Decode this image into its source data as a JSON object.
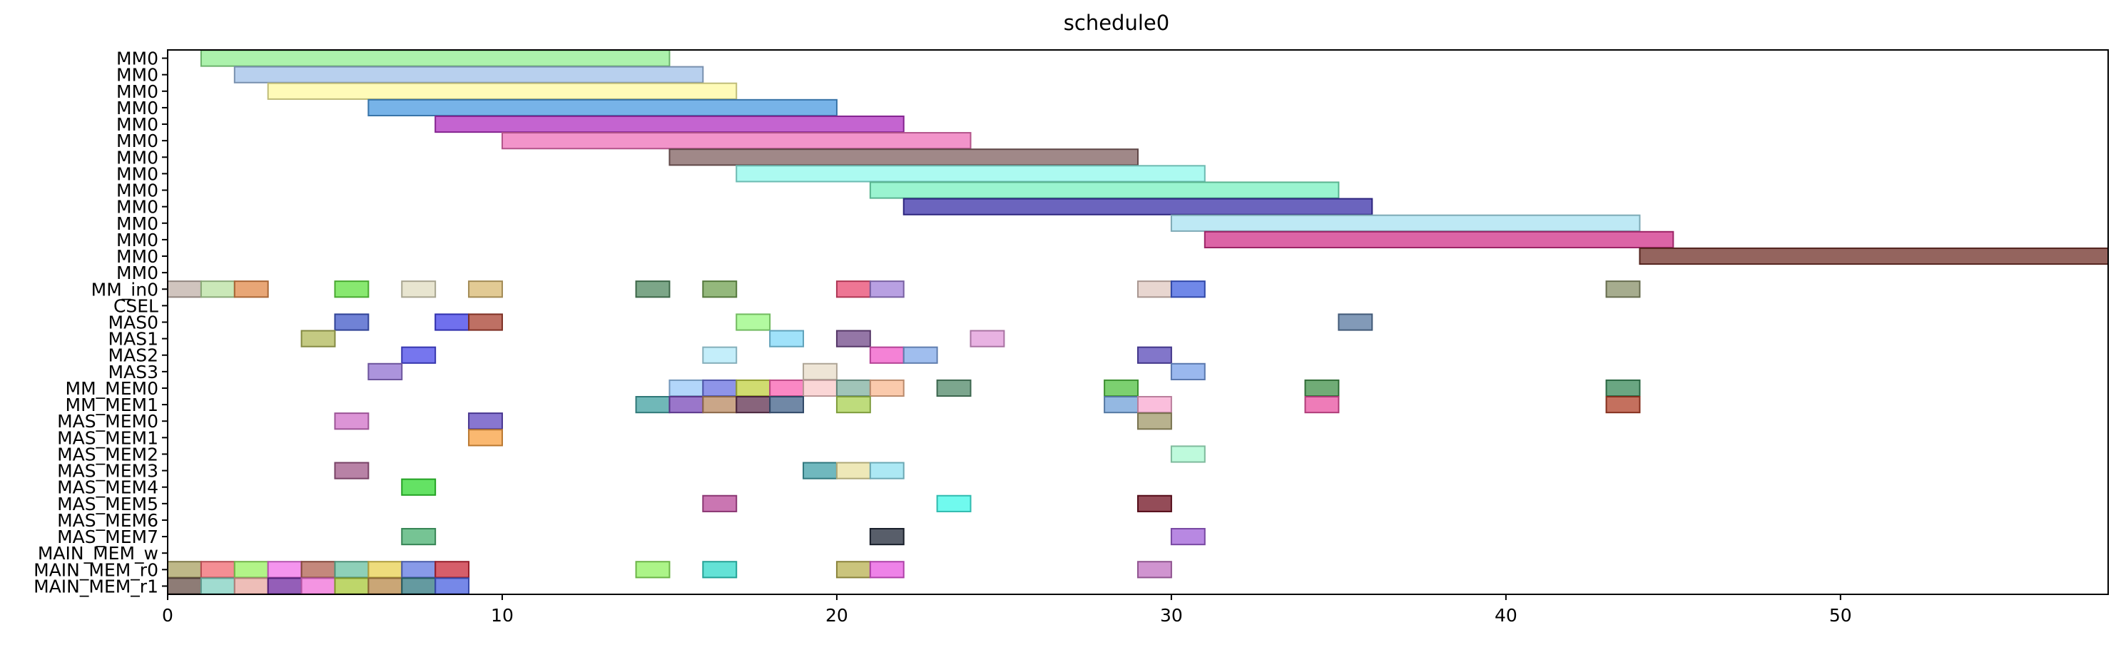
{
  "chart_data": {
    "type": "bar",
    "title": "schedule0",
    "xlabel": "",
    "ylabel": "",
    "xlim": [
      0,
      58
    ],
    "xticks": [
      0,
      10,
      20,
      30,
      40,
      50
    ],
    "grid": false,
    "legend": "none",
    "rows": [
      "MM0",
      "MM0",
      "MM0",
      "MM0",
      "MM0",
      "MM0",
      "MM0",
      "MM0",
      "MM0",
      "MM0",
      "MM0",
      "MM0",
      "MM0",
      "MM0",
      "MM_in0",
      "CSEL",
      "MAS0",
      "MAS1",
      "MAS2",
      "MAS3",
      "MM_MEM0",
      "MM_MEM1",
      "MAS_MEM0",
      "MAS_MEM1",
      "MAS_MEM2",
      "MAS_MEM3",
      "MAS_MEM4",
      "MAS_MEM5",
      "MAS_MEM6",
      "MAS_MEM7",
      "MAIN_MEM_w",
      "MAIN_MEM_r0",
      "MAIN_MEM_r1"
    ],
    "tasks": [
      {
        "row": 0,
        "start": 1,
        "end": 15,
        "color": "#90ee90"
      },
      {
        "row": 1,
        "start": 2,
        "end": 16,
        "color": "#a0c0e8"
      },
      {
        "row": 2,
        "start": 3,
        "end": 17,
        "color": "#fffaa0"
      },
      {
        "row": 3,
        "start": 6,
        "end": 20,
        "color": "#4a9ae0"
      },
      {
        "row": 4,
        "start": 8,
        "end": 22,
        "color": "#b030c0"
      },
      {
        "row": 5,
        "start": 10,
        "end": 24,
        "color": "#ee70b8"
      },
      {
        "row": 6,
        "start": 15,
        "end": 29,
        "color": "#806060"
      },
      {
        "row": 7,
        "start": 17,
        "end": 31,
        "color": "#90f8ec"
      },
      {
        "row": 8,
        "start": 21,
        "end": 35,
        "color": "#78f0c0"
      },
      {
        "row": 9,
        "start": 22,
        "end": 36,
        "color": "#3a30a8"
      },
      {
        "row": 10,
        "start": 30,
        "end": 44,
        "color": "#a8e2f2"
      },
      {
        "row": 11,
        "start": 31,
        "end": 45,
        "color": "#d03088"
      },
      {
        "row": 12,
        "start": 44,
        "end": 58,
        "color": "#703028"
      },
      {
        "row": 14,
        "start": 0,
        "end": 1,
        "color": "#c0b0a8"
      },
      {
        "row": 14,
        "start": 1,
        "end": 2,
        "color": "#b8e0a0"
      },
      {
        "row": 14,
        "start": 2,
        "end": 3,
        "color": "#e08848"
      },
      {
        "row": 14,
        "start": 5,
        "end": 6,
        "color": "#60e040"
      },
      {
        "row": 14,
        "start": 7,
        "end": 8,
        "color": "#e0dcc0"
      },
      {
        "row": 14,
        "start": 9,
        "end": 10,
        "color": "#d8b870"
      },
      {
        "row": 14,
        "start": 14,
        "end": 15,
        "color": "#508860"
      },
      {
        "row": 14,
        "start": 16,
        "end": 17,
        "color": "#70a050"
      },
      {
        "row": 14,
        "start": 20,
        "end": 21,
        "color": "#e84870"
      },
      {
        "row": 14,
        "start": 21,
        "end": 22,
        "color": "#a080d8"
      },
      {
        "row": 14,
        "start": 29,
        "end": 30,
        "color": "#e0c8c0"
      },
      {
        "row": 14,
        "start": 30,
        "end": 31,
        "color": "#4060e0"
      },
      {
        "row": 14,
        "start": 43,
        "end": 44,
        "color": "#889068"
      },
      {
        "row": 16,
        "start": 5,
        "end": 6,
        "color": "#4058c8"
      },
      {
        "row": 16,
        "start": 8,
        "end": 9,
        "color": "#4040e8"
      },
      {
        "row": 16,
        "start": 9,
        "end": 10,
        "color": "#a84030"
      },
      {
        "row": 16,
        "start": 17,
        "end": 18,
        "color": "#98f880"
      },
      {
        "row": 16,
        "start": 35,
        "end": 36,
        "color": "#5878a0"
      },
      {
        "row": 17,
        "start": 4,
        "end": 5,
        "color": "#b0b858"
      },
      {
        "row": 17,
        "start": 18,
        "end": 19,
        "color": "#80d8f8"
      },
      {
        "row": 17,
        "start": 20,
        "end": 21,
        "color": "#704888"
      },
      {
        "row": 17,
        "start": 24,
        "end": 25,
        "color": "#e098d8"
      },
      {
        "row": 18,
        "start": 7,
        "end": 8,
        "color": "#4848e8"
      },
      {
        "row": 18,
        "start": 16,
        "end": 17,
        "color": "#b0e8f8"
      },
      {
        "row": 18,
        "start": 21,
        "end": 22,
        "color": "#f058c8"
      },
      {
        "row": 18,
        "start": 22,
        "end": 23,
        "color": "#80a8e8"
      },
      {
        "row": 18,
        "start": 29,
        "end": 30,
        "color": "#5848b8"
      },
      {
        "row": 19,
        "start": 6,
        "end": 7,
        "color": "#9070d0"
      },
      {
        "row": 19,
        "start": 19,
        "end": 20,
        "color": "#e8dcc8"
      },
      {
        "row": 19,
        "start": 30,
        "end": 31,
        "color": "#78a0e8"
      },
      {
        "row": 20,
        "start": 15,
        "end": 16,
        "color": "#98c8f8"
      },
      {
        "row": 20,
        "start": 16,
        "end": 17,
        "color": "#6870e0"
      },
      {
        "row": 20,
        "start": 17,
        "end": 18,
        "color": "#c0d040"
      },
      {
        "row": 20,
        "start": 18,
        "end": 19,
        "color": "#f860b0"
      },
      {
        "row": 20,
        "start": 19,
        "end": 20,
        "color": "#f8c8c8"
      },
      {
        "row": 20,
        "start": 20,
        "end": 21,
        "color": "#80b0a0"
      },
      {
        "row": 20,
        "start": 21,
        "end": 22,
        "color": "#f8b890"
      },
      {
        "row": 20,
        "start": 23,
        "end": 24,
        "color": "#508868"
      },
      {
        "row": 20,
        "start": 28,
        "end": 29,
        "color": "#50c040"
      },
      {
        "row": 20,
        "start": 34,
        "end": 35,
        "color": "#409048"
      },
      {
        "row": 20,
        "start": 43,
        "end": 44,
        "color": "#388858"
      },
      {
        "row": 21,
        "start": 14,
        "end": 15,
        "color": "#40a0a0"
      },
      {
        "row": 21,
        "start": 15,
        "end": 16,
        "color": "#7848b8"
      },
      {
        "row": 21,
        "start": 16,
        "end": 17,
        "color": "#b88860"
      },
      {
        "row": 21,
        "start": 17,
        "end": 18,
        "color": "#603050"
      },
      {
        "row": 21,
        "start": 18,
        "end": 19,
        "color": "#406088"
      },
      {
        "row": 21,
        "start": 20,
        "end": 21,
        "color": "#a8d050"
      },
      {
        "row": 21,
        "start": 28,
        "end": 29,
        "color": "#70a0d8"
      },
      {
        "row": 21,
        "start": 29,
        "end": 30,
        "color": "#f8a8d0"
      },
      {
        "row": 21,
        "start": 34,
        "end": 35,
        "color": "#e850a0"
      },
      {
        "row": 21,
        "start": 43,
        "end": 44,
        "color": "#b04028"
      },
      {
        "row": 22,
        "start": 5,
        "end": 6,
        "color": "#d070c8"
      },
      {
        "row": 22,
        "start": 9,
        "end": 10,
        "color": "#6048c0"
      },
      {
        "row": 22,
        "start": 29,
        "end": 30,
        "color": "#a09868"
      },
      {
        "row": 23,
        "start": 9,
        "end": 10,
        "color": "#f8a040"
      },
      {
        "row": 24,
        "start": 30,
        "end": 31,
        "color": "#a8f8d0"
      },
      {
        "row": 25,
        "start": 5,
        "end": 6,
        "color": "#a05888"
      },
      {
        "row": 25,
        "start": 19,
        "end": 20,
        "color": "#40a0a8"
      },
      {
        "row": 25,
        "start": 20,
        "end": 21,
        "color": "#e8e0a0"
      },
      {
        "row": 25,
        "start": 21,
        "end": 22,
        "color": "#90e0f0"
      },
      {
        "row": 26,
        "start": 7,
        "end": 8,
        "color": "#30d830"
      },
      {
        "row": 27,
        "start": 16,
        "end": 17,
        "color": "#b84898"
      },
      {
        "row": 27,
        "start": 23,
        "end": 24,
        "color": "#40f8e8"
      },
      {
        "row": 27,
        "start": 29,
        "end": 30,
        "color": "#701020"
      },
      {
        "row": 29,
        "start": 7,
        "end": 8,
        "color": "#48b070"
      },
      {
        "row": 29,
        "start": 21,
        "end": 22,
        "color": "#202838"
      },
      {
        "row": 29,
        "start": 30,
        "end": 31,
        "color": "#a060d8"
      },
      {
        "row": 31,
        "start": 0,
        "end": 1,
        "color": "#a8a060"
      },
      {
        "row": 31,
        "start": 1,
        "end": 2,
        "color": "#f06870"
      },
      {
        "row": 31,
        "start": 2,
        "end": 3,
        "color": "#98f060"
      },
      {
        "row": 31,
        "start": 3,
        "end": 4,
        "color": "#f070e8"
      },
      {
        "row": 31,
        "start": 4,
        "end": 5,
        "color": "#b06050"
      },
      {
        "row": 31,
        "start": 5,
        "end": 6,
        "color": "#68c0a0"
      },
      {
        "row": 31,
        "start": 6,
        "end": 7,
        "color": "#e8d050"
      },
      {
        "row": 31,
        "start": 7,
        "end": 8,
        "color": "#6078e0"
      },
      {
        "row": 31,
        "start": 8,
        "end": 9,
        "color": "#c82838"
      },
      {
        "row": 31,
        "start": 14,
        "end": 15,
        "color": "#90f060"
      },
      {
        "row": 31,
        "start": 16,
        "end": 17,
        "color": "#30d8c8"
      },
      {
        "row": 31,
        "start": 20,
        "end": 21,
        "color": "#b8b050"
      },
      {
        "row": 31,
        "start": 21,
        "end": 22,
        "color": "#e858e0"
      },
      {
        "row": 31,
        "start": 29,
        "end": 30,
        "color": "#c070c0"
      },
      {
        "row": 32,
        "start": 0,
        "end": 1,
        "color": "#685048"
      },
      {
        "row": 32,
        "start": 1,
        "end": 2,
        "color": "#80d0c0"
      },
      {
        "row": 32,
        "start": 2,
        "end": 3,
        "color": "#e8a8a0"
      },
      {
        "row": 32,
        "start": 3,
        "end": 4,
        "color": "#7028a0"
      },
      {
        "row": 32,
        "start": 4,
        "end": 5,
        "color": "#f070d8"
      },
      {
        "row": 32,
        "start": 5,
        "end": 6,
        "color": "#a8c838"
      },
      {
        "row": 32,
        "start": 6,
        "end": 7,
        "color": "#b88848"
      },
      {
        "row": 32,
        "start": 7,
        "end": 8,
        "color": "#307880"
      },
      {
        "row": 32,
        "start": 8,
        "end": 9,
        "color": "#4860e0"
      }
    ]
  }
}
